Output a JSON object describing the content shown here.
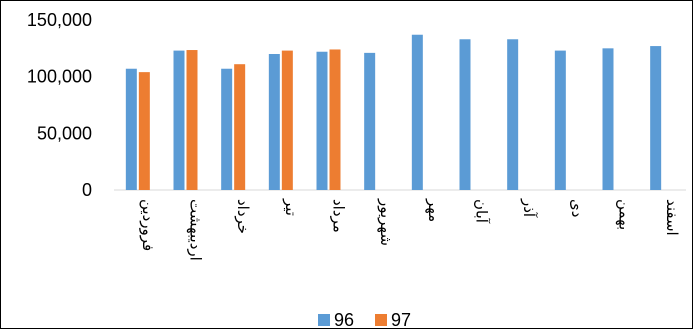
{
  "chart_data": {
    "type": "bar",
    "categories": [
      "فروردین",
      "اردیبهشت",
      "خرداد",
      "تیر",
      "مرداد",
      "شهریور",
      "مهر",
      "آبان",
      "آذر",
      "دی",
      "بهمن",
      "اسفند"
    ],
    "series": [
      {
        "name": "96",
        "color": "#5B9BD5",
        "values": [
          107000,
          123000,
          107000,
          120000,
          122000,
          121000,
          137000,
          133000,
          133000,
          123000,
          125000,
          127000
        ]
      },
      {
        "name": "97",
        "color": "#ED7D31",
        "values": [
          104000,
          123500,
          111000,
          123000,
          124000,
          null,
          null,
          null,
          null,
          null,
          null,
          null
        ]
      }
    ],
    "yticks": [
      "0",
      "50,000",
      "100,000",
      "150,000"
    ],
    "ytick_values": [
      0,
      50000,
      100000,
      150000
    ],
    "ylim": [
      0,
      150000
    ],
    "grid": false,
    "legend_position": "bottom-center"
  }
}
